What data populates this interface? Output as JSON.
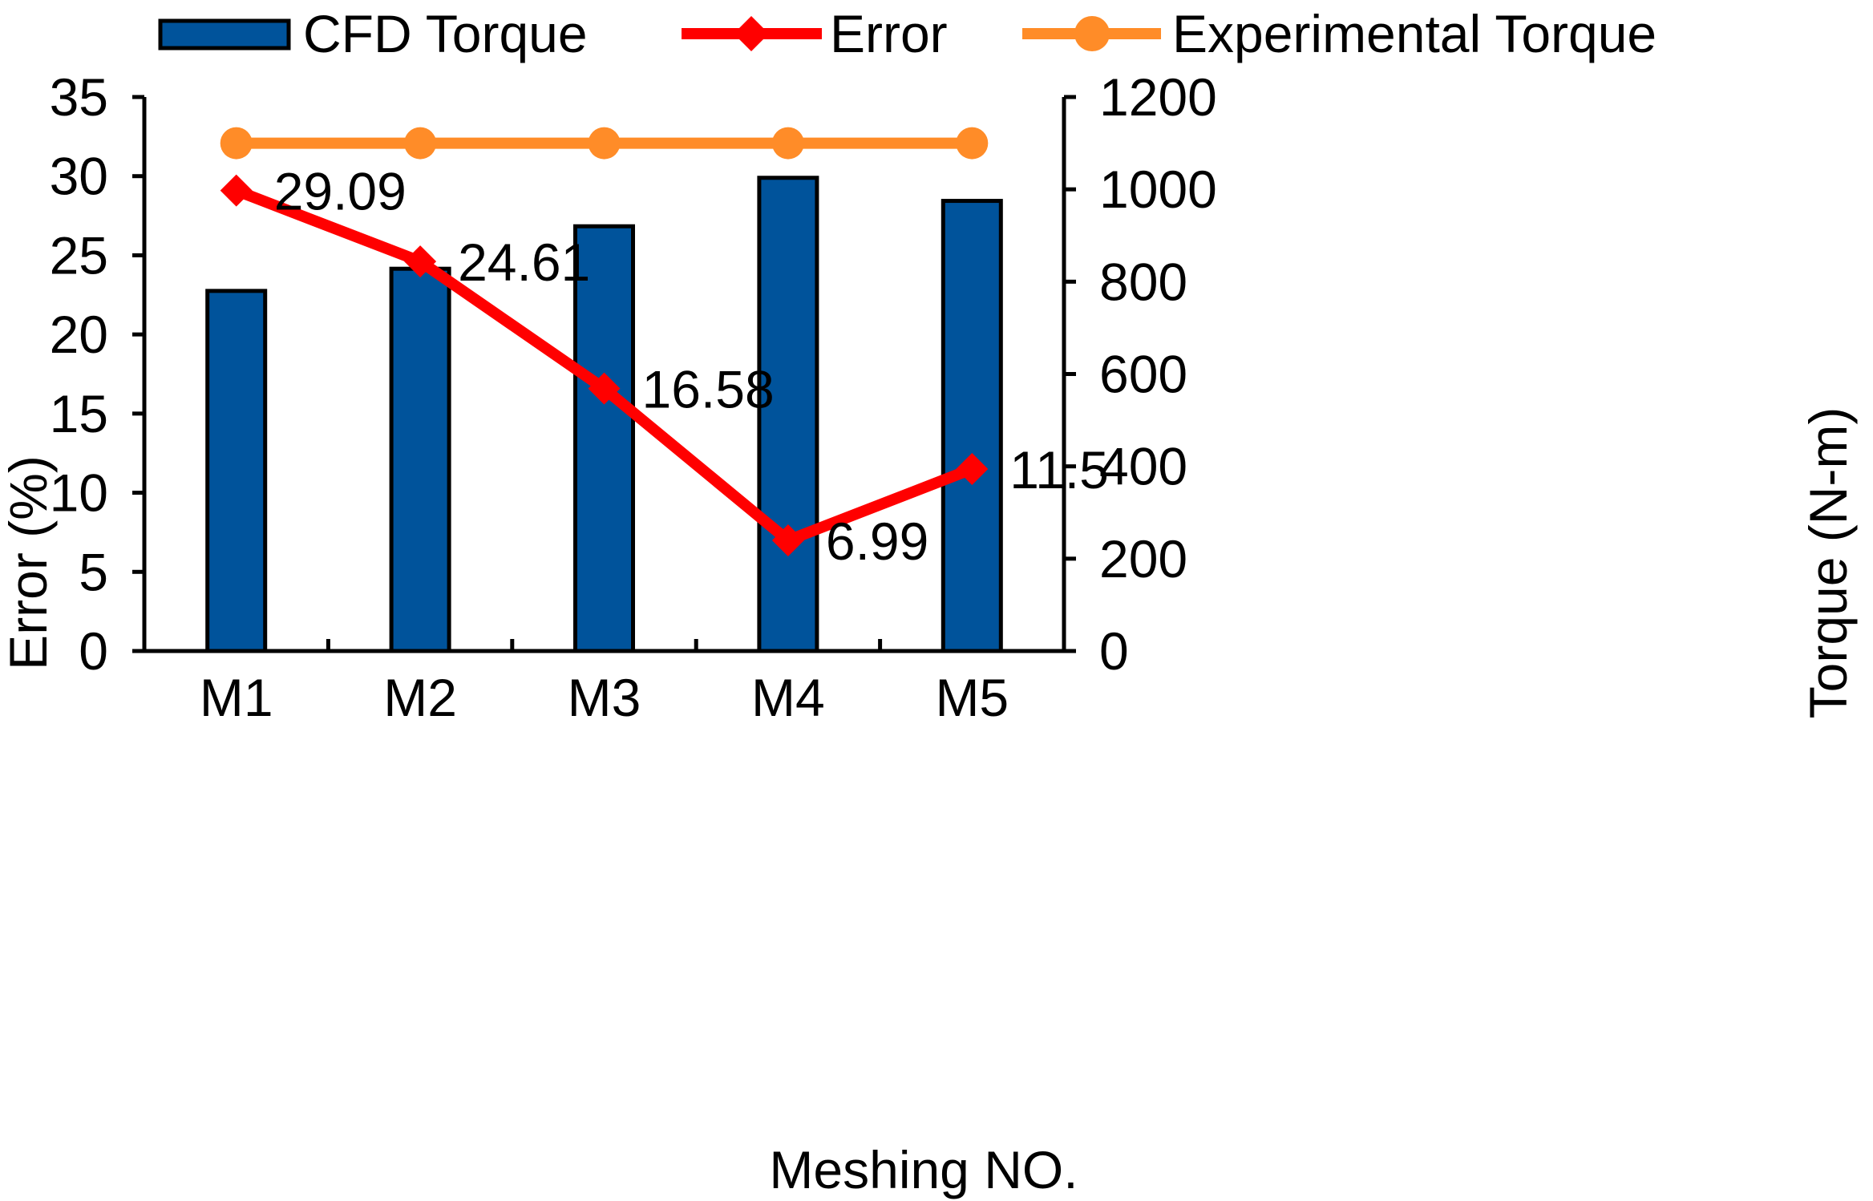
{
  "chart_data": {
    "type": "bar-line-combo",
    "categories": [
      "M1",
      "M2",
      "M3",
      "M4",
      "M5"
    ],
    "xlabel": "Meshing NO.",
    "y_left": {
      "label": "Error (%)",
      "lim": [
        0,
        35
      ],
      "ticks": [
        0,
        5,
        10,
        15,
        20,
        25,
        30,
        35
      ]
    },
    "y_right": {
      "label": "Torque (N-m)",
      "lim": [
        0,
        1200
      ],
      "ticks": [
        0,
        200,
        400,
        600,
        800,
        1000,
        1200
      ]
    },
    "series": [
      {
        "name": "CFD Torque",
        "kind": "bar",
        "axis": "right",
        "color": "#00539B",
        "values": [
          780,
          828,
          920,
          1025,
          975
        ]
      },
      {
        "name": "Error",
        "kind": "line",
        "marker": "diamond",
        "axis": "left",
        "color": "#FF0000",
        "values": [
          29.09,
          24.61,
          16.58,
          6.99,
          11.5
        ],
        "labels": [
          "29.09",
          "24.61",
          "16.58",
          "6.99",
          "11.5"
        ]
      },
      {
        "name": "Experimental Torque",
        "kind": "line",
        "marker": "circle",
        "axis": "right",
        "color": "#FF8C28",
        "values": [
          1100,
          1100,
          1100,
          1100,
          1100
        ]
      }
    ],
    "legend": "top"
  }
}
